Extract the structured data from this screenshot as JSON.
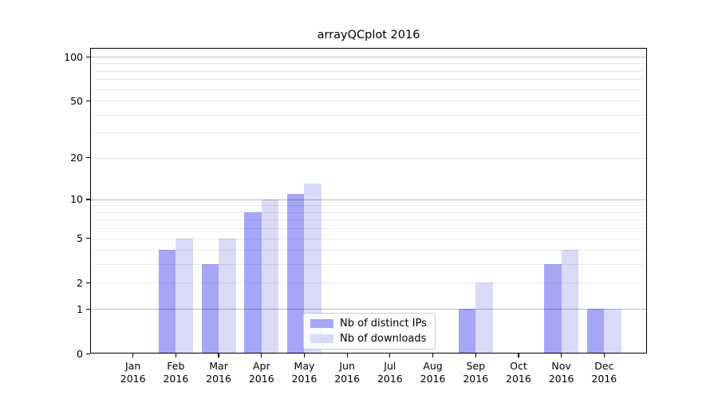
{
  "title": "arrayQCplot 2016",
  "colors": {
    "distinct_ips_bar": "#a6a6f6",
    "downloads_bar": "#dadaf8",
    "grid_major": "rgba(0,0,0,0.26)",
    "grid_minor": "rgba(0,0,0,0.08)",
    "axis": "#000000",
    "legend_border": "#cccccc"
  },
  "legend": {
    "items": [
      {
        "label": "Nb of distinct IPs",
        "color_key": "distinct_ips_bar"
      },
      {
        "label": "Nb of downloads",
        "color_key": "downloads_bar"
      }
    ]
  },
  "chart_data": {
    "type": "bar",
    "title": "arrayQCplot 2016",
    "categories": [
      "Jan 2016",
      "Feb 2016",
      "Mar 2016",
      "Apr 2016",
      "May 2016",
      "Jun 2016",
      "Jul 2016",
      "Aug 2016",
      "Sep 2016",
      "Oct 2016",
      "Nov 2016",
      "Dec 2016"
    ],
    "series": [
      {
        "name": "Nb of distinct IPs",
        "values": [
          0,
          4,
          3,
          8,
          11,
          0,
          0,
          0,
          1,
          0,
          3,
          1
        ]
      },
      {
        "name": "Nb of downloads",
        "values": [
          0,
          5,
          5,
          10,
          13,
          0,
          0,
          0,
          2,
          0,
          4,
          1
        ]
      }
    ],
    "xlabel": "",
    "ylabel": "",
    "y_scale": "log1p",
    "ylim": [
      0,
      115
    ],
    "y_ticks": [
      0,
      1,
      2,
      5,
      10,
      20,
      50,
      100
    ],
    "grid_major_values": [
      1,
      10,
      100
    ],
    "grid_minor_values": [
      2,
      3,
      4,
      5,
      6,
      7,
      8,
      9,
      20,
      30,
      40,
      50,
      60,
      70,
      80,
      90
    ],
    "grid": "horizontal, drawn over bars",
    "legend_position": "lower center"
  }
}
